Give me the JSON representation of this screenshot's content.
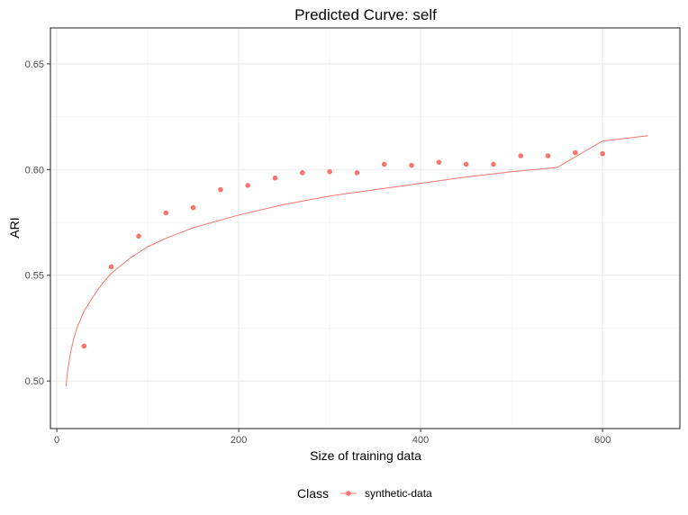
{
  "chart_data": {
    "type": "scatter",
    "title": "Predicted Curve: self",
    "xlabel": "Size of training data",
    "ylabel": "ARI",
    "xlim": [
      -7,
      685
    ],
    "ylim": [
      0.4775,
      0.667
    ],
    "x_ticks": [
      0,
      200,
      400,
      600
    ],
    "x_tick_labels": [
      "0",
      "200",
      "400",
      "600"
    ],
    "y_ticks": [
      0.5,
      0.55,
      0.6,
      0.65
    ],
    "y_tick_labels": [
      "0.50",
      "0.55",
      "0.60",
      "0.65"
    ],
    "x_minor": [
      100,
      300,
      500
    ],
    "y_minor": [
      0.525,
      0.575,
      0.625
    ],
    "grid": true,
    "legend": {
      "title": "Class",
      "position": "bottom"
    },
    "color": "#f8766d",
    "series": [
      {
        "name": "synthetic-data",
        "points": {
          "x": [
            30,
            60,
            90,
            120,
            150,
            180,
            210,
            240,
            270,
            300,
            330,
            360,
            390,
            420,
            450,
            480,
            510,
            540,
            570,
            600
          ],
          "y": [
            0.5165,
            0.554,
            0.5685,
            0.5795,
            0.582,
            0.5905,
            0.5925,
            0.596,
            0.5985,
            0.599,
            0.5985,
            0.6025,
            0.602,
            0.6035,
            0.6025,
            0.6025,
            0.6065,
            0.6065,
            0.608,
            0.6075
          ]
        },
        "fitted_curve": {
          "x": [
            10,
            12,
            15,
            18,
            22,
            26,
            30,
            40,
            50,
            60,
            80,
            100,
            120,
            150,
            200,
            250,
            300,
            350,
            400,
            450,
            500,
            550,
            600,
            650
          ],
          "y": [
            0.4975,
            0.505,
            0.513,
            0.519,
            0.525,
            0.529,
            0.533,
            0.54,
            0.546,
            0.551,
            0.558,
            0.5635,
            0.5675,
            0.5725,
            0.5785,
            0.5835,
            0.5875,
            0.5905,
            0.5935,
            0.5965,
            0.599,
            0.601,
            0.6135,
            0.616
          ]
        }
      }
    ]
  }
}
